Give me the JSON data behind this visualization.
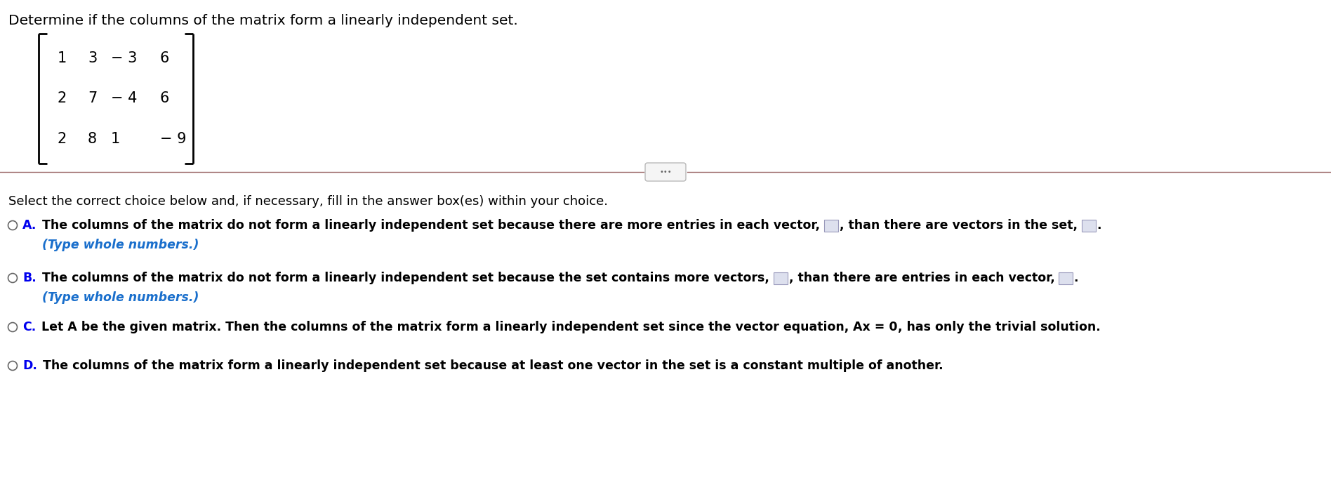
{
  "title": "Determine if the columns of the matrix form a linearly independent set.",
  "matrix_rows": [
    [
      "1",
      "3",
      "− 3",
      "6"
    ],
    [
      "2",
      "7",
      "− 4",
      "6"
    ],
    [
      "2",
      "8",
      "1",
      "− 9"
    ]
  ],
  "instruction": "Select the correct choice below and, if necessary, fill in the answer box(es) within your choice.",
  "options": [
    {
      "label": "A.",
      "text1": "The columns of the matrix do not form a linearly independent set because there are more entries in each vector,",
      "has_boxes": true,
      "mid": ", than there are vectors in the set,",
      "end": ".",
      "subtext": "(Type whole numbers.)"
    },
    {
      "label": "B.",
      "text1": "The columns of the matrix do not form a linearly independent set because the set contains more vectors,",
      "has_boxes": true,
      "mid": ", than there are entries in each vector,",
      "end": ".",
      "subtext": "(Type whole numbers.)"
    },
    {
      "label": "C.",
      "text_before_bold": "Let A be the given matrix. Then the columns of the matrix form a linearly independent set since the vector equation, ",
      "bold_text": "Ax = 0",
      "text_after_bold": ", has only the trivial solution.",
      "has_boxes": false,
      "subtext": ""
    },
    {
      "label": "D.",
      "text1": "The columns of the matrix form a linearly independent set because at least one vector in the set is a constant multiple of another.",
      "has_boxes": false,
      "subtext": ""
    }
  ],
  "bg_color": "#ffffff",
  "text_color": "#000000",
  "label_color": "#0000ee",
  "subtext_color": "#1a6fcc",
  "separator_color": "#9e6b6b",
  "circle_color": "#666666",
  "box_fill": "#dde0ee",
  "box_border": "#9999bb",
  "font_size_title": 14.5,
  "font_size_text": 12.5,
  "font_size_matrix": 15,
  "font_size_instruction": 13
}
